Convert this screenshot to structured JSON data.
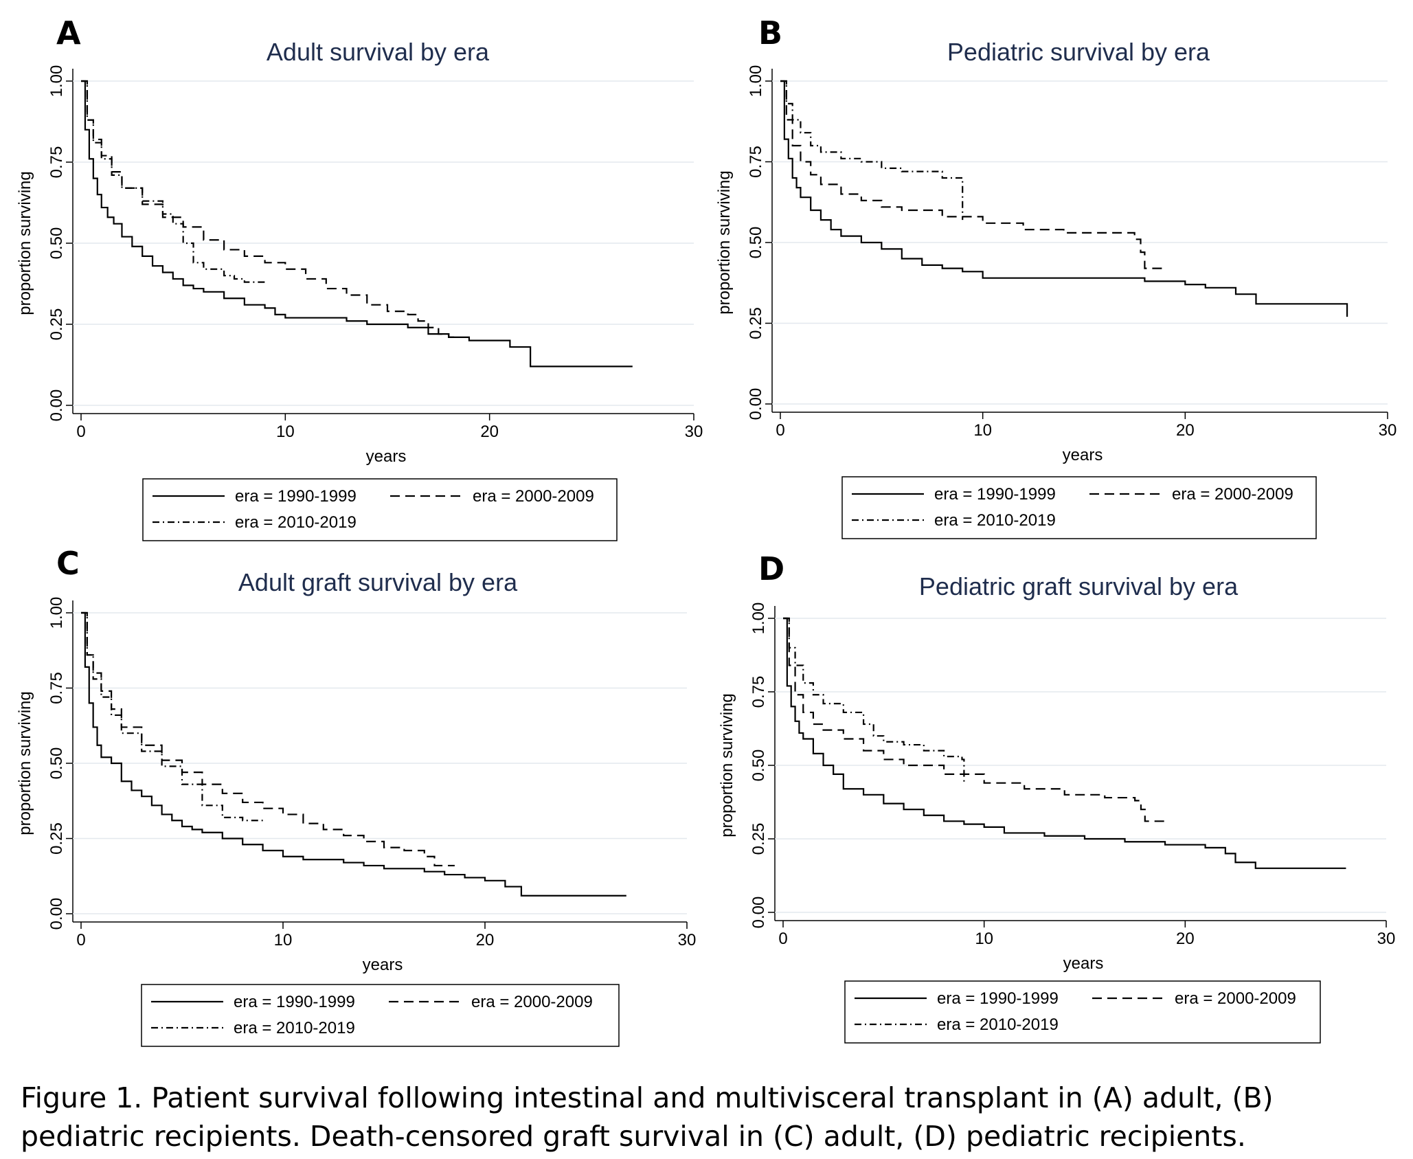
{
  "caption": "Figure 1. Patient survival following intestinal and multivisceral transplant in (A) adult, (B) pediatric recipients. Death-censored graft survival in (C) adult, (D) pediatric recipients.",
  "chart_data": [
    {
      "panel_letter": "A",
      "type": "line",
      "title": "Adult survival by era",
      "xlabel": "years",
      "ylabel": "proportion surviving",
      "xlim": [
        0,
        30
      ],
      "ylim": [
        0,
        1
      ],
      "x_ticks": [
        "0",
        "10",
        "20",
        "30"
      ],
      "y_ticks": [
        "0.00",
        "0.25",
        "0.50",
        "0.75",
        "1.00"
      ],
      "grid": "horizontal",
      "legend_position": "bottom",
      "series": [
        {
          "name": "era = 1990-1999",
          "style": "solid",
          "x": [
            0,
            0.2,
            0.4,
            0.6,
            0.8,
            1.0,
            1.3,
            1.6,
            2.0,
            2.5,
            3.0,
            3.5,
            4.0,
            4.5,
            5.0,
            5.5,
            6.0,
            7.0,
            8.0,
            9.0,
            9.5,
            10.0,
            12.0,
            13.0,
            14.0,
            15.0,
            16.0,
            17.0,
            18.0,
            19.0,
            20.0,
            21.0,
            21.8,
            22.0,
            27.0
          ],
          "y": [
            1.0,
            0.85,
            0.76,
            0.7,
            0.65,
            0.61,
            0.58,
            0.56,
            0.52,
            0.49,
            0.46,
            0.43,
            0.41,
            0.39,
            0.37,
            0.36,
            0.35,
            0.33,
            0.31,
            0.3,
            0.28,
            0.27,
            0.27,
            0.26,
            0.25,
            0.25,
            0.24,
            0.22,
            0.21,
            0.2,
            0.2,
            0.18,
            0.18,
            0.12,
            0.12
          ]
        },
        {
          "name": "era = 2000-2009",
          "style": "dashed",
          "x": [
            0,
            0.3,
            0.6,
            1.0,
            1.5,
            2.0,
            3.0,
            4.0,
            5.0,
            6.0,
            7.0,
            8.0,
            9.0,
            10.0,
            11.0,
            12.0,
            13.0,
            14.0,
            15.0,
            16.0,
            16.5,
            17.0,
            17.5,
            18.0,
            18.5
          ],
          "y": [
            1.0,
            0.88,
            0.82,
            0.77,
            0.72,
            0.67,
            0.62,
            0.58,
            0.55,
            0.51,
            0.48,
            0.46,
            0.44,
            0.42,
            0.39,
            0.36,
            0.34,
            0.31,
            0.29,
            0.28,
            0.26,
            0.24,
            0.22,
            0.21,
            0.21
          ]
        },
        {
          "name": "era = 2010-2019",
          "style": "dashdot",
          "x": [
            0,
            0.3,
            0.6,
            1.0,
            1.5,
            2.0,
            3.0,
            4.0,
            4.5,
            5.0,
            5.5,
            6.0,
            7.0,
            7.5,
            8.0,
            9.0
          ],
          "y": [
            1.0,
            0.88,
            0.81,
            0.76,
            0.71,
            0.67,
            0.63,
            0.59,
            0.56,
            0.5,
            0.44,
            0.42,
            0.4,
            0.39,
            0.38,
            0.38
          ]
        }
      ]
    },
    {
      "panel_letter": "B",
      "type": "line",
      "title": "Pediatric survival by era",
      "xlabel": "years",
      "ylabel": "proportion surviving",
      "xlim": [
        0,
        30
      ],
      "ylim": [
        0,
        1
      ],
      "x_ticks": [
        "0",
        "10",
        "20",
        "30"
      ],
      "y_ticks": [
        "0.00",
        "0.25",
        "0.50",
        "0.75",
        "1.00"
      ],
      "grid": "horizontal",
      "legend_position": "bottom",
      "series": [
        {
          "name": "era = 1990-1999",
          "style": "solid",
          "x": [
            0,
            0.2,
            0.4,
            0.6,
            0.8,
            1.0,
            1.5,
            2.0,
            2.5,
            3.0,
            4.0,
            5.0,
            6.0,
            7.0,
            8.0,
            9.0,
            10.0,
            12.0,
            14.0,
            16.0,
            18.0,
            20.0,
            21.0,
            22.5,
            23.5,
            28.0
          ],
          "y": [
            1.0,
            0.82,
            0.76,
            0.7,
            0.67,
            0.64,
            0.6,
            0.57,
            0.54,
            0.52,
            0.5,
            0.48,
            0.45,
            0.43,
            0.42,
            0.41,
            0.39,
            0.39,
            0.39,
            0.39,
            0.38,
            0.37,
            0.36,
            0.34,
            0.31,
            0.27
          ]
        },
        {
          "name": "era = 2000-2009",
          "style": "dashed",
          "x": [
            0,
            0.3,
            0.6,
            1.0,
            1.5,
            2.0,
            3.0,
            4.0,
            5.0,
            6.0,
            8.0,
            10.0,
            12.0,
            14.0,
            16.0,
            17.5,
            17.8,
            18.0,
            19.0
          ],
          "y": [
            1.0,
            0.88,
            0.8,
            0.75,
            0.71,
            0.68,
            0.65,
            0.63,
            0.61,
            0.6,
            0.58,
            0.56,
            0.54,
            0.53,
            0.53,
            0.51,
            0.47,
            0.42,
            0.42
          ]
        },
        {
          "name": "era = 2010-2019",
          "style": "dashdot",
          "x": [
            0,
            0.3,
            0.6,
            1.0,
            1.5,
            2.0,
            3.0,
            4.0,
            5.0,
            6.0,
            7.0,
            8.0,
            8.9,
            9.0
          ],
          "y": [
            1.0,
            0.93,
            0.88,
            0.84,
            0.8,
            0.78,
            0.76,
            0.75,
            0.73,
            0.72,
            0.72,
            0.7,
            0.7,
            0.57
          ]
        }
      ]
    },
    {
      "panel_letter": "C",
      "type": "line",
      "title": "Adult graft survival by era",
      "xlabel": "years",
      "ylabel": "proportion surviving",
      "xlim": [
        0,
        30
      ],
      "ylim": [
        0,
        1
      ],
      "x_ticks": [
        "0",
        "10",
        "20",
        "30"
      ],
      "y_ticks": [
        "0.00",
        "0.25",
        "0.50",
        "0.75",
        "1.00"
      ],
      "grid": "horizontal",
      "legend_position": "bottom",
      "series": [
        {
          "name": "era = 1990-1999",
          "style": "solid",
          "x": [
            0,
            0.2,
            0.4,
            0.6,
            0.8,
            1.0,
            1.5,
            2.0,
            2.5,
            3.0,
            3.5,
            4.0,
            4.5,
            5.0,
            5.5,
            6.0,
            7.0,
            8.0,
            9.0,
            10.0,
            11.0,
            13.0,
            14.0,
            15.0,
            17.0,
            18.0,
            19.0,
            20.0,
            21.0,
            21.8,
            27.0
          ],
          "y": [
            1.0,
            0.82,
            0.7,
            0.62,
            0.56,
            0.52,
            0.5,
            0.44,
            0.41,
            0.39,
            0.36,
            0.33,
            0.31,
            0.29,
            0.28,
            0.27,
            0.25,
            0.23,
            0.21,
            0.19,
            0.18,
            0.17,
            0.16,
            0.15,
            0.14,
            0.13,
            0.12,
            0.11,
            0.09,
            0.06,
            0.06
          ]
        },
        {
          "name": "era = 2000-2009",
          "style": "dashed",
          "x": [
            0,
            0.3,
            0.6,
            1.0,
            1.5,
            2.0,
            3.0,
            4.0,
            5.0,
            6.0,
            7.0,
            8.0,
            9.0,
            10.0,
            11.0,
            12.0,
            13.0,
            14.0,
            15.0,
            16.0,
            17.0,
            17.5,
            18.5
          ],
          "y": [
            1.0,
            0.86,
            0.8,
            0.74,
            0.68,
            0.62,
            0.56,
            0.51,
            0.47,
            0.43,
            0.4,
            0.37,
            0.35,
            0.33,
            0.3,
            0.28,
            0.26,
            0.24,
            0.22,
            0.21,
            0.19,
            0.16,
            0.16
          ]
        },
        {
          "name": "era = 2010-2019",
          "style": "dashdot",
          "x": [
            0,
            0.3,
            0.6,
            1.0,
            1.5,
            2.0,
            3.0,
            4.0,
            5.0,
            6.0,
            7.0,
            8.0,
            9.0
          ],
          "y": [
            1.0,
            0.86,
            0.78,
            0.72,
            0.66,
            0.6,
            0.54,
            0.49,
            0.43,
            0.36,
            0.32,
            0.31,
            0.31
          ]
        }
      ]
    },
    {
      "panel_letter": "D",
      "type": "line",
      "title": "Pediatric graft survival by era",
      "xlabel": "years",
      "ylabel": "proportion surviving",
      "xlim": [
        0,
        30
      ],
      "ylim": [
        0,
        1
      ],
      "x_ticks": [
        "0",
        "10",
        "20",
        "30"
      ],
      "y_ticks": [
        "0.00",
        "0.25",
        "0.50",
        "0.75",
        "1.00"
      ],
      "grid": "horizontal",
      "legend_position": "bottom",
      "series": [
        {
          "name": "era = 1990-1999",
          "style": "solid",
          "x": [
            0,
            0.2,
            0.4,
            0.6,
            0.8,
            1.0,
            1.5,
            2.0,
            2.5,
            3.0,
            4.0,
            5.0,
            6.0,
            7.0,
            8.0,
            9.0,
            10.0,
            11.0,
            13.0,
            15.0,
            17.0,
            19.0,
            21.0,
            22.0,
            22.5,
            23.5,
            28.0
          ],
          "y": [
            1.0,
            0.77,
            0.7,
            0.65,
            0.61,
            0.59,
            0.54,
            0.5,
            0.47,
            0.42,
            0.4,
            0.37,
            0.35,
            0.33,
            0.31,
            0.3,
            0.29,
            0.27,
            0.26,
            0.25,
            0.24,
            0.23,
            0.22,
            0.2,
            0.17,
            0.15,
            0.15
          ]
        },
        {
          "name": "era = 2000-2009",
          "style": "dashed",
          "x": [
            0,
            0.3,
            0.6,
            1.0,
            1.5,
            2.0,
            3.0,
            4.0,
            5.0,
            6.0,
            8.0,
            10.0,
            12.0,
            14.0,
            16.0,
            17.5,
            17.8,
            18.0,
            19.0
          ],
          "y": [
            1.0,
            0.84,
            0.74,
            0.68,
            0.64,
            0.62,
            0.59,
            0.55,
            0.52,
            0.5,
            0.47,
            0.44,
            0.42,
            0.4,
            0.39,
            0.38,
            0.35,
            0.31,
            0.31
          ]
        },
        {
          "name": "era = 2010-2019",
          "style": "dashdot",
          "x": [
            0,
            0.3,
            0.6,
            1.0,
            1.5,
            2.0,
            3.0,
            4.0,
            4.5,
            5.0,
            6.0,
            7.0,
            8.0,
            8.9,
            9.0
          ],
          "y": [
            1.0,
            0.9,
            0.84,
            0.78,
            0.74,
            0.71,
            0.68,
            0.64,
            0.6,
            0.58,
            0.57,
            0.55,
            0.53,
            0.52,
            0.44
          ]
        }
      ]
    }
  ]
}
